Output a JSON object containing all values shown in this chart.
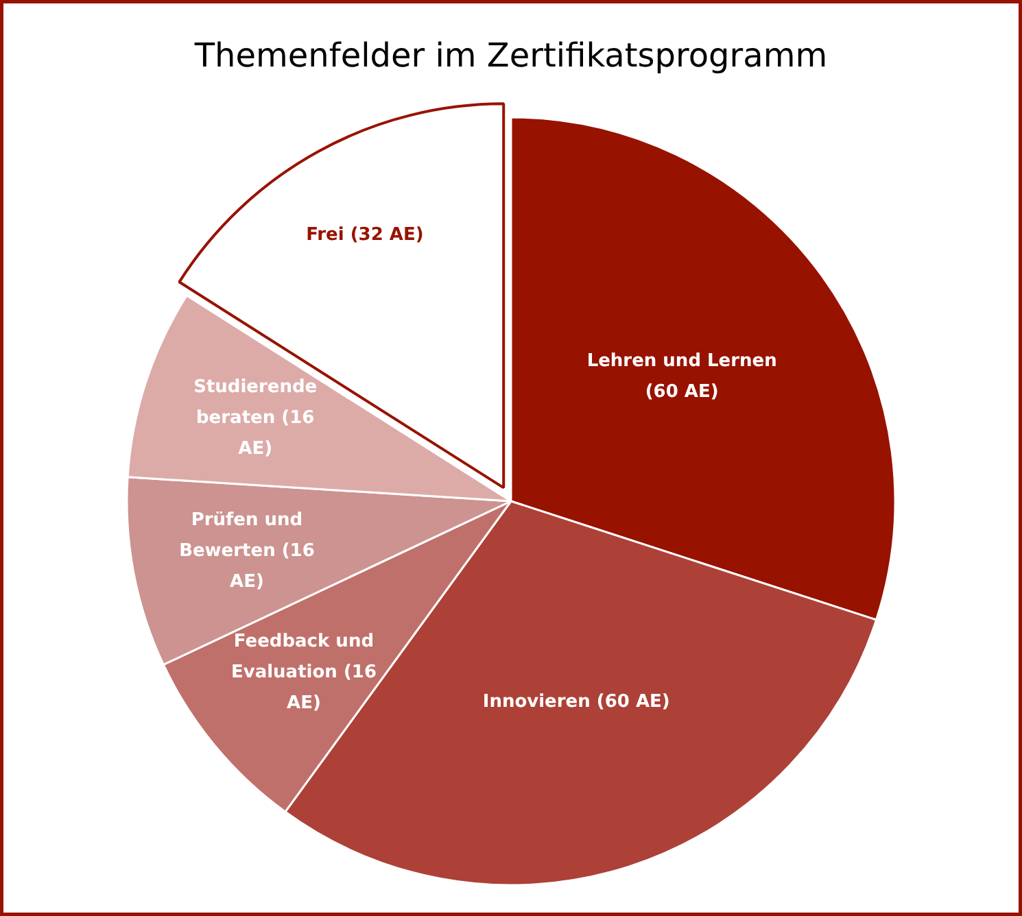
{
  "chart_data": {
    "type": "pie",
    "title": "Themenfelder im Zertifikatsprogramm",
    "categories": [
      "Lehren und Lernen (60 AE)",
      "Innovieren (60 AE)",
      "Feedback und Evaluation (16 AE)",
      "Prüfen und Bewerten (16 AE)",
      "Studierende beraten (16 AE)",
      "Frei (32 AE)"
    ],
    "values": [
      60,
      60,
      16,
      16,
      16,
      32
    ],
    "colors": [
      "#981200",
      "#ad4137",
      "#c0706a",
      "#cc9390",
      "#dcaba8",
      "#ffffff"
    ]
  }
}
